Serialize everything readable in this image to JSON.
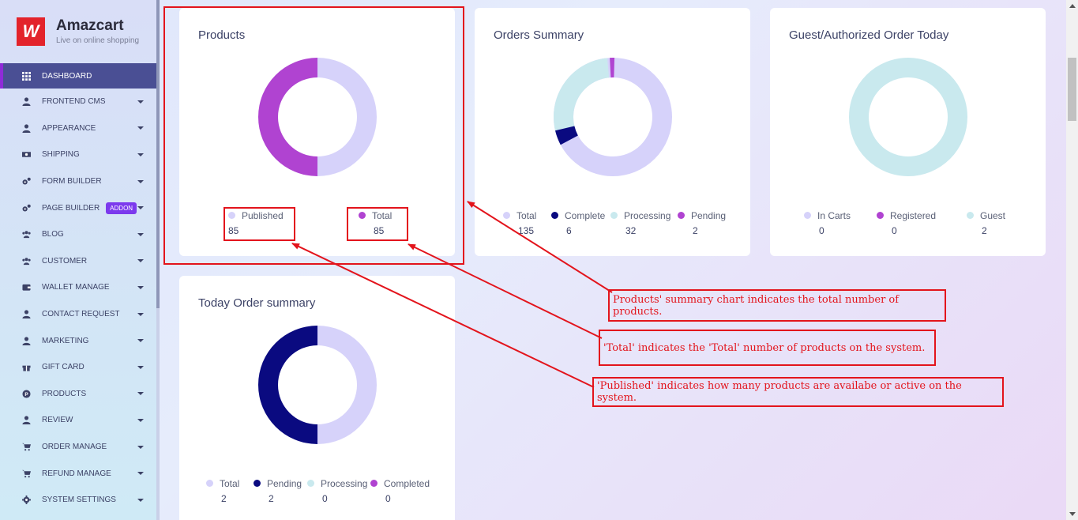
{
  "brand": {
    "name": "Amazcart",
    "tagline": "Live on online shopping",
    "logo_glyph": "W"
  },
  "sidebar": {
    "items": [
      {
        "label": "DASHBOARD",
        "icon": "grid-icon",
        "active": true,
        "has_caret": false
      },
      {
        "label": "FRONTEND CMS",
        "icon": "user-icon",
        "has_caret": true
      },
      {
        "label": "APPEARANCE",
        "icon": "user-icon",
        "has_caret": true
      },
      {
        "label": "SHIPPING",
        "icon": "money-icon",
        "has_caret": true
      },
      {
        "label": "FORM BUILDER",
        "icon": "cogs-icon",
        "has_caret": true
      },
      {
        "label": "PAGE BUILDER",
        "icon": "cogs-icon",
        "has_caret": true,
        "badge": "ADDON"
      },
      {
        "label": "BLOG",
        "icon": "users-icon",
        "has_caret": true
      },
      {
        "label": "CUSTOMER",
        "icon": "users-icon",
        "has_caret": true
      },
      {
        "label": "WALLET MANAGE",
        "icon": "wallet-icon",
        "has_caret": true
      },
      {
        "label": "CONTACT REQUEST",
        "icon": "user-icon",
        "has_caret": true
      },
      {
        "label": "MARKETING",
        "icon": "user-icon",
        "has_caret": true
      },
      {
        "label": "GIFT CARD",
        "icon": "gift-icon",
        "has_caret": true
      },
      {
        "label": "PRODUCTS",
        "icon": "product-icon",
        "has_caret": true
      },
      {
        "label": "REVIEW",
        "icon": "user-icon",
        "has_caret": true
      },
      {
        "label": "ORDER MANAGE",
        "icon": "cart-icon",
        "has_caret": true
      },
      {
        "label": "REFUND MANAGE",
        "icon": "cart-icon",
        "has_caret": true
      },
      {
        "label": "SYSTEM SETTINGS",
        "icon": "gear-icon",
        "has_caret": true
      }
    ]
  },
  "colors": {
    "lavender": "#d6d2fa",
    "purple": "#b043d1",
    "navy": "#0a0a80",
    "mint": "#c9e9ee",
    "annotation_red": "#e3141c"
  },
  "cards": {
    "products": {
      "title": "Products",
      "legend": [
        {
          "label": "Published",
          "value": "85",
          "color": "#d6d2fa"
        },
        {
          "label": "Total",
          "value": "85",
          "color": "#b043d1"
        }
      ]
    },
    "orders_summary": {
      "title": "Orders Summary",
      "legend": [
        {
          "label": "Total",
          "value": "135",
          "color": "#d6d2fa"
        },
        {
          "label": "Complete",
          "value": "6",
          "color": "#0a0a80"
        },
        {
          "label": "Processing",
          "value": "32",
          "color": "#c9e9ee"
        },
        {
          "label": "Pending",
          "value": "2",
          "color": "#b043d1"
        }
      ]
    },
    "guest_orders": {
      "title": "Guest/Authorized Order Today",
      "legend": [
        {
          "label": "In Carts",
          "value": "0",
          "color": "#d6d2fa"
        },
        {
          "label": "Registered",
          "value": "0",
          "color": "#b043d1"
        },
        {
          "label": "Guest",
          "value": "2",
          "color": "#c9e9ee"
        }
      ]
    },
    "today_orders": {
      "title": "Today Order summary",
      "legend": [
        {
          "label": "Total",
          "value": "2",
          "color": "#d6d2fa"
        },
        {
          "label": "Pending",
          "value": "2",
          "color": "#0a0a80"
        },
        {
          "label": "Processing",
          "value": "0",
          "color": "#c9e9ee"
        },
        {
          "label": "Completed",
          "value": "0",
          "color": "#b043d1"
        }
      ]
    }
  },
  "annotations": {
    "note1": "Products' summary chart indicates the total number of products.",
    "note2": "'Total' indicates the 'Total' number of products on the system.",
    "note3": "'Published' indicates how many products are availabe or active on the system."
  }
}
